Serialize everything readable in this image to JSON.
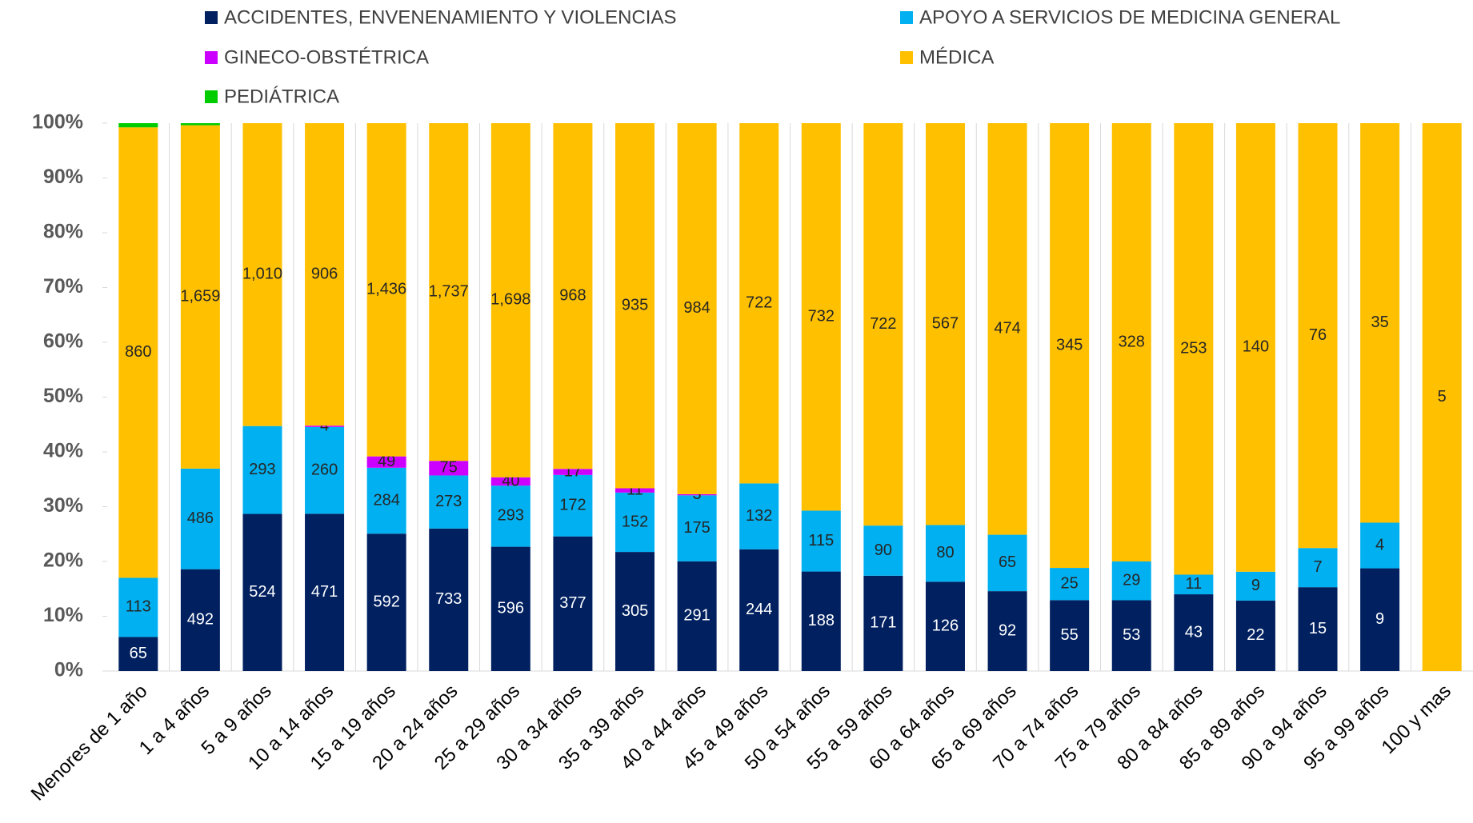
{
  "chart_data": {
    "type": "bar",
    "stacking": "percent",
    "categories": [
      "Menores de 1 año",
      "1 a 4 años",
      "5 a 9 años",
      "10 a 14 años",
      "15 a 19 años",
      "20 a 24 años",
      "25 a 29 años",
      "30 a 34 años",
      "35 a 39 años",
      "40 a 44 años",
      "45 a 49 años",
      "50 a 54 años",
      "55 a 59 años",
      "60 a 64 años",
      "65 a 69 años",
      "70 a 74 años",
      "75 a 79 años",
      "80 a 84 años",
      "85 a 89 años",
      "90 a 94 años",
      "95 a 99 años",
      "100 y mas"
    ],
    "series": [
      {
        "name": "ACCIDENTES, ENVENENAMIENTO Y VIOLENCIAS",
        "color": "#002060",
        "label_color": "#ffffff",
        "values": [
          65,
          492,
          524,
          471,
          592,
          733,
          596,
          377,
          305,
          291,
          244,
          188,
          171,
          126,
          92,
          55,
          53,
          43,
          22,
          15,
          9,
          null
        ]
      },
      {
        "name": "APOYO A SERVICIOS DE MEDICINA GENERAL",
        "color": "#00b0f0",
        "label_color": "#262626",
        "values": [
          113,
          486,
          293,
          260,
          284,
          273,
          293,
          172,
          152,
          175,
          132,
          115,
          90,
          80,
          65,
          25,
          29,
          11,
          9,
          7,
          4,
          null
        ]
      },
      {
        "name": "GINECO-OBSTÉTRICA",
        "color": "#cc00ff",
        "label_color": "#262626",
        "values": [
          null,
          null,
          null,
          4,
          49,
          75,
          40,
          17,
          11,
          3,
          null,
          null,
          null,
          null,
          null,
          null,
          null,
          null,
          null,
          null,
          null,
          null
        ]
      },
      {
        "name": "MÉDICA",
        "color": "#ffc000",
        "label_color": "#262626",
        "values": [
          860,
          1659,
          1010,
          906,
          1436,
          1737,
          1698,
          968,
          935,
          984,
          722,
          732,
          722,
          567,
          474,
          345,
          328,
          253,
          140,
          76,
          35,
          5
        ],
        "value_labels": [
          "860",
          "1,659",
          "1,010",
          "906",
          "1,436",
          "1,737",
          "1,698",
          "968",
          "935",
          "984",
          "722",
          "732",
          "722",
          "567",
          "474",
          "345",
          "328",
          "253",
          "140",
          "76",
          "35",
          "5"
        ]
      },
      {
        "name": "PEDIÁTRICA",
        "color": "#00cc00",
        "show_labels": false,
        "values": [
          8,
          10,
          null,
          null,
          null,
          null,
          null,
          null,
          null,
          null,
          null,
          null,
          null,
          null,
          null,
          null,
          null,
          null,
          null,
          null,
          null,
          null
        ]
      }
    ],
    "ylim": [
      0,
      100
    ],
    "yticks": [
      {
        "value": 0,
        "label": "0%"
      },
      {
        "value": 10,
        "label": "10%"
      },
      {
        "value": 20,
        "label": "20%"
      },
      {
        "value": 30,
        "label": "30%"
      },
      {
        "value": 40,
        "label": "40%"
      },
      {
        "value": 50,
        "label": "50%"
      },
      {
        "value": 60,
        "label": "60%"
      },
      {
        "value": 70,
        "label": "70%"
      },
      {
        "value": 80,
        "label": "80%"
      },
      {
        "value": 90,
        "label": "90%"
      },
      {
        "value": 100,
        "label": "100%"
      }
    ]
  }
}
